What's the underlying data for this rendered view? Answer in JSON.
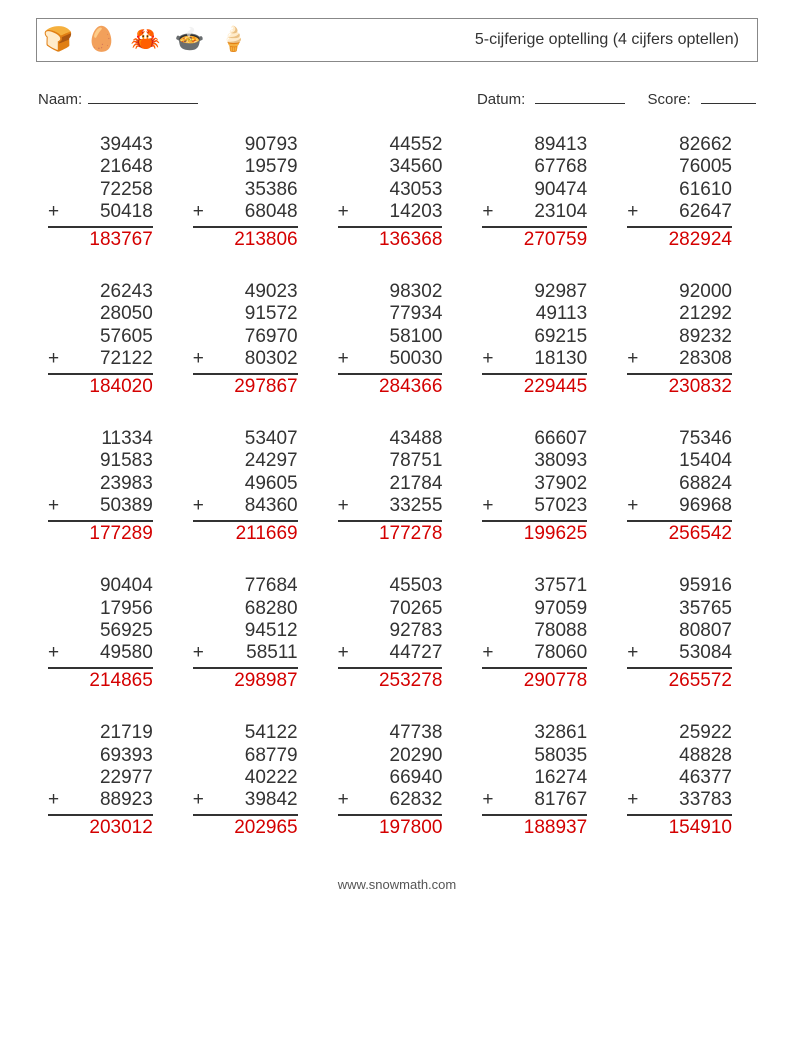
{
  "header": {
    "title": "5-cijferige optelling (4 cijfers optellen)",
    "icons": [
      "🍞",
      "🥚",
      "🦀",
      "🍲",
      "🍦"
    ]
  },
  "meta": {
    "name_label": "Naam:",
    "date_label": "Datum:",
    "score_label": "Score:"
  },
  "style": {
    "text_color": "#333333",
    "answer_color": "#d40000",
    "border_color": "#888888",
    "font_size_problem": 19,
    "font_size_title": 16,
    "operator": "+"
  },
  "problems": [
    {
      "addends": [
        "39443",
        "21648",
        "72258",
        "50418"
      ],
      "answer": "183767"
    },
    {
      "addends": [
        "90793",
        "19579",
        "35386",
        "68048"
      ],
      "answer": "213806"
    },
    {
      "addends": [
        "44552",
        "34560",
        "43053",
        "14203"
      ],
      "answer": "136368"
    },
    {
      "addends": [
        "89413",
        "67768",
        "90474",
        "23104"
      ],
      "answer": "270759"
    },
    {
      "addends": [
        "82662",
        "76005",
        "61610",
        "62647"
      ],
      "answer": "282924"
    },
    {
      "addends": [
        "26243",
        "28050",
        "57605",
        "72122"
      ],
      "answer": "184020"
    },
    {
      "addends": [
        "49023",
        "91572",
        "76970",
        "80302"
      ],
      "answer": "297867"
    },
    {
      "addends": [
        "98302",
        "77934",
        "58100",
        "50030"
      ],
      "answer": "284366"
    },
    {
      "addends": [
        "92987",
        "49113",
        "69215",
        "18130"
      ],
      "answer": "229445"
    },
    {
      "addends": [
        "92000",
        "21292",
        "89232",
        "28308"
      ],
      "answer": "230832"
    },
    {
      "addends": [
        "11334",
        "91583",
        "23983",
        "50389"
      ],
      "answer": "177289"
    },
    {
      "addends": [
        "53407",
        "24297",
        "49605",
        "84360"
      ],
      "answer": "211669"
    },
    {
      "addends": [
        "43488",
        "78751",
        "21784",
        "33255"
      ],
      "answer": "177278"
    },
    {
      "addends": [
        "66607",
        "38093",
        "37902",
        "57023"
      ],
      "answer": "199625"
    },
    {
      "addends": [
        "75346",
        "15404",
        "68824",
        "96968"
      ],
      "answer": "256542"
    },
    {
      "addends": [
        "90404",
        "17956",
        "56925",
        "49580"
      ],
      "answer": "214865"
    },
    {
      "addends": [
        "77684",
        "68280",
        "94512",
        "58511"
      ],
      "answer": "298987"
    },
    {
      "addends": [
        "45503",
        "70265",
        "92783",
        "44727"
      ],
      "answer": "253278"
    },
    {
      "addends": [
        "37571",
        "97059",
        "78088",
        "78060"
      ],
      "answer": "290778"
    },
    {
      "addends": [
        "95916",
        "35765",
        "80807",
        "53084"
      ],
      "answer": "265572"
    },
    {
      "addends": [
        "21719",
        "69393",
        "22977",
        "88923"
      ],
      "answer": "203012"
    },
    {
      "addends": [
        "54122",
        "68779",
        "40222",
        "39842"
      ],
      "answer": "202965"
    },
    {
      "addends": [
        "47738",
        "20290",
        "66940",
        "62832"
      ],
      "answer": "197800"
    },
    {
      "addends": [
        "32861",
        "58035",
        "16274",
        "81767"
      ],
      "answer": "188937"
    },
    {
      "addends": [
        "25922",
        "48828",
        "46377",
        "33783"
      ],
      "answer": "154910"
    }
  ],
  "footer": {
    "text": "www.snowmath.com"
  }
}
